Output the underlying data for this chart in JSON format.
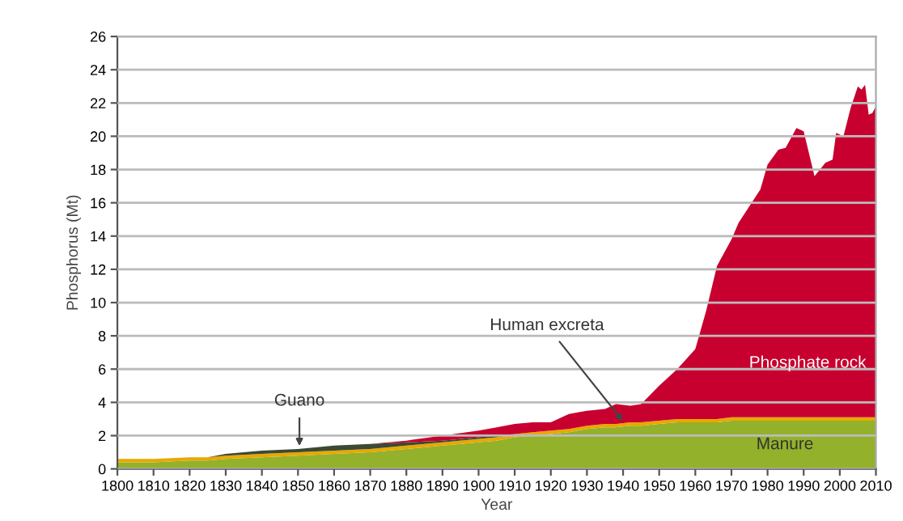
{
  "chart_data": {
    "type": "area",
    "stacked": true,
    "xlabel": "Year",
    "ylabel": "Phosphorus (Mt)",
    "x": [
      1800,
      1810,
      1820,
      1825,
      1830,
      1840,
      1850,
      1860,
      1870,
      1880,
      1890,
      1900,
      1905,
      1910,
      1915,
      1920,
      1925,
      1930,
      1935,
      1938,
      1942,
      1945,
      1950,
      1955,
      1960,
      1963,
      1966,
      1970,
      1972,
      1975,
      1978,
      1980,
      1983,
      1985,
      1988,
      1990,
      1993,
      1996,
      1998,
      1999,
      2001,
      2003,
      2005,
      2006,
      2007,
      2008,
      2009,
      2010
    ],
    "series": [
      {
        "name": "Manure",
        "color": "#94b12b",
        "values": [
          0.4,
          0.4,
          0.5,
          0.5,
          0.6,
          0.7,
          0.8,
          0.9,
          1.0,
          1.2,
          1.4,
          1.6,
          1.7,
          1.9,
          2.0,
          2.1,
          2.2,
          2.4,
          2.5,
          2.5,
          2.6,
          2.6,
          2.7,
          2.8,
          2.8,
          2.8,
          2.8,
          2.9,
          2.9,
          2.9,
          2.9,
          2.9,
          2.9,
          2.9,
          2.9,
          2.9,
          2.9,
          2.9,
          2.9,
          2.9,
          2.9,
          2.9,
          2.9,
          2.9,
          2.9,
          2.9,
          2.9,
          2.9
        ]
      },
      {
        "name": "Human excreta",
        "color": "#e8a800",
        "values": [
          0.2,
          0.2,
          0.2,
          0.2,
          0.2,
          0.2,
          0.2,
          0.2,
          0.2,
          0.2,
          0.2,
          0.2,
          0.2,
          0.2,
          0.2,
          0.2,
          0.2,
          0.2,
          0.2,
          0.2,
          0.2,
          0.2,
          0.2,
          0.2,
          0.2,
          0.2,
          0.2,
          0.2,
          0.2,
          0.2,
          0.2,
          0.2,
          0.2,
          0.2,
          0.2,
          0.2,
          0.2,
          0.2,
          0.2,
          0.2,
          0.2,
          0.2,
          0.2,
          0.2,
          0.2,
          0.2,
          0.2,
          0.2
        ]
      },
      {
        "name": "Guano",
        "color": "#3c4a32",
        "values": [
          0,
          0,
          0,
          0,
          0.1,
          0.2,
          0.2,
          0.3,
          0.3,
          0.2,
          0.1,
          0.1,
          0.1,
          0,
          0,
          0,
          0,
          0,
          0,
          0,
          0,
          0,
          0,
          0,
          0,
          0,
          0,
          0,
          0,
          0,
          0,
          0,
          0,
          0,
          0,
          0,
          0,
          0,
          0,
          0,
          0,
          0,
          0,
          0,
          0,
          0,
          0,
          0
        ]
      },
      {
        "name": "Phosphate rock",
        "color": "#c8002f",
        "values": [
          0,
          0,
          0,
          0,
          0,
          0,
          0,
          0,
          0,
          0.1,
          0.3,
          0.4,
          0.5,
          0.6,
          0.6,
          0.5,
          0.9,
          0.9,
          0.9,
          1.2,
          1.0,
          1.1,
          2.1,
          3.0,
          4.2,
          6.5,
          9.2,
          10.7,
          11.7,
          12.7,
          13.7,
          15.2,
          16.1,
          16.2,
          17.4,
          17.2,
          14.5,
          15.3,
          15.5,
          17.1,
          16.9,
          18.6,
          19.9,
          19.7,
          20.0,
          18.2,
          18.3,
          18.7
        ]
      }
    ],
    "xlim": [
      1800,
      2010
    ],
    "xticks": [
      1800,
      1810,
      1820,
      1830,
      1840,
      1850,
      1860,
      1870,
      1880,
      1890,
      1900,
      1910,
      1920,
      1930,
      1940,
      1950,
      1960,
      1970,
      1980,
      1990,
      2000,
      2010
    ],
    "ylim": [
      0,
      26
    ],
    "yticks": [
      0,
      2,
      4,
      6,
      8,
      10,
      12,
      14,
      16,
      18,
      20,
      22,
      24,
      26
    ],
    "grid": "y"
  }
}
